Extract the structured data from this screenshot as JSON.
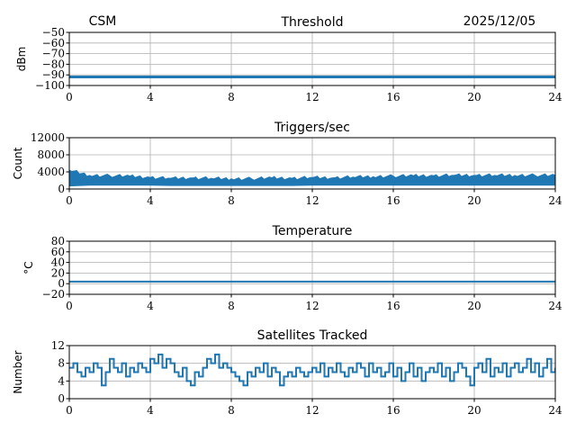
{
  "header": {
    "left": "CSM",
    "right": "2025/12/05"
  },
  "colors": {
    "line": "#1f77b4",
    "grid": "#b0b0b0",
    "axis": "#000000"
  },
  "chart_data": [
    {
      "type": "line",
      "title": "Threshold",
      "xlabel": "",
      "ylabel": "dBm",
      "xlim": [
        0,
        24
      ],
      "ylim": [
        -100,
        -50
      ],
      "xticks": [
        0,
        4,
        8,
        12,
        16,
        20,
        24
      ],
      "yticks": [
        -100,
        -90,
        -80,
        -70,
        -60,
        -50
      ],
      "ytick_labels": [
        "−100",
        "−90",
        "−80",
        "−70",
        "−60",
        "−50"
      ],
      "grid": true,
      "x": [
        0,
        24
      ],
      "y": [
        -92,
        -92
      ]
    },
    {
      "type": "area",
      "title": "Triggers/sec",
      "xlabel": "",
      "ylabel": "Count",
      "xlim": [
        0,
        24
      ],
      "ylim": [
        0,
        12000
      ],
      "xticks": [
        0,
        4,
        8,
        12,
        16,
        20,
        24
      ],
      "yticks": [
        0,
        4000,
        8000,
        12000
      ],
      "ytick_labels": [
        "0",
        "4000",
        "8000",
        "12000"
      ],
      "grid": true,
      "x": [
        0,
        1,
        2,
        3,
        4,
        5,
        6,
        7,
        8,
        9,
        10,
        11,
        12,
        13,
        14,
        15,
        16,
        17,
        18,
        19,
        20,
        21,
        22,
        23,
        24
      ],
      "high": [
        4500,
        3300,
        3200,
        3100,
        2800,
        2600,
        2700,
        2600,
        2500,
        2500,
        2700,
        2600,
        2800,
        2700,
        2900,
        3000,
        3100,
        3200,
        3200,
        3300,
        3300,
        3300,
        3300,
        3300,
        3300
      ],
      "low": [
        600,
        800,
        800,
        800,
        800,
        700,
        700,
        700,
        700,
        700,
        700,
        700,
        800,
        800,
        800,
        800,
        800,
        800,
        800,
        800,
        800,
        800,
        800,
        800,
        800
      ]
    },
    {
      "type": "line",
      "title": "Temperature",
      "xlabel": "",
      "ylabel": "°C",
      "xlim": [
        0,
        24
      ],
      "ylim": [
        -20,
        80
      ],
      "xticks": [
        0,
        4,
        8,
        12,
        16,
        20,
        24
      ],
      "yticks": [
        -20,
        0,
        20,
        40,
        60,
        80
      ],
      "ytick_labels": [
        "−20",
        "0",
        "20",
        "40",
        "60",
        "80"
      ],
      "grid": true,
      "x": [
        0,
        24
      ],
      "y": [
        4,
        4
      ]
    },
    {
      "type": "line",
      "title": "Satellites Tracked",
      "xlabel": "",
      "ylabel": "Number",
      "xlim": [
        0,
        24
      ],
      "ylim": [
        0,
        12
      ],
      "xticks": [
        0,
        4,
        8,
        12,
        16,
        20,
        24
      ],
      "yticks": [
        0,
        4,
        8,
        12
      ],
      "ytick_labels": [
        "0",
        "4",
        "8",
        "12"
      ],
      "grid": true,
      "x_step": 0.2,
      "y": [
        7,
        8,
        6,
        5,
        7,
        6,
        8,
        7,
        3,
        6,
        9,
        7,
        6,
        8,
        5,
        7,
        6,
        8,
        7,
        6,
        9,
        8,
        10,
        7,
        9,
        8,
        6,
        5,
        7,
        4,
        3,
        6,
        5,
        7,
        9,
        8,
        10,
        7,
        8,
        7,
        6,
        5,
        4,
        3,
        6,
        5,
        7,
        6,
        8,
        5,
        7,
        6,
        3,
        5,
        6,
        5,
        7,
        6,
        5,
        6,
        7,
        6,
        8,
        5,
        7,
        6,
        8,
        6,
        5,
        7,
        6,
        8,
        7,
        5,
        8,
        6,
        7,
        5,
        6,
        8,
        5,
        7,
        4,
        6,
        8,
        5,
        7,
        4,
        6,
        7,
        6,
        8,
        5,
        7,
        4,
        6,
        8,
        7,
        5,
        3,
        7,
        8,
        6,
        9,
        5,
        7,
        6,
        8,
        5,
        7,
        8,
        6,
        7,
        9,
        6,
        8,
        5,
        7,
        9,
        6,
        7
      ]
    }
  ]
}
